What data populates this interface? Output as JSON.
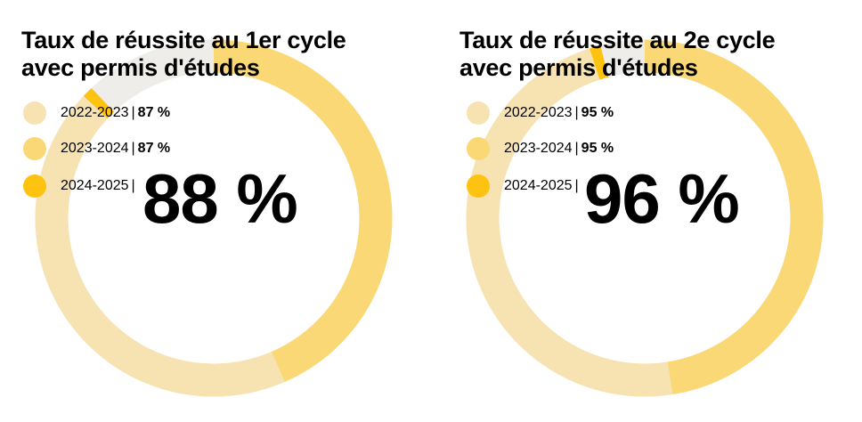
{
  "colors": {
    "track": "#eeedea",
    "year_2022_2023": "#f7e2b2",
    "year_2023_2024": "#fad875",
    "year_2024_2025": "#fec210"
  },
  "chart_data": [
    {
      "type": "donut",
      "title": "Taux de réussite au 1er cycle avec permis d'études",
      "main_value_label": "88 %",
      "categories": [
        "2022-2023",
        "2023-2024",
        "2024-2025"
      ],
      "values": [
        87,
        87,
        88
      ],
      "value_labels": [
        "87 %",
        "87 %",
        ""
      ],
      "series": [
        {
          "name": "2022-2023",
          "value": 87,
          "color": "#f7e2b2"
        },
        {
          "name": "2023-2024",
          "value": 87,
          "color": "#fad875"
        },
        {
          "name": "2024-2025",
          "value": 88,
          "color": "#fec210"
        }
      ],
      "max": 100
    },
    {
      "type": "donut",
      "title": "Taux de réussite au 2e cycle avec permis d'études",
      "main_value_label": "96 %",
      "categories": [
        "2022-2023",
        "2023-2024",
        "2024-2025"
      ],
      "values": [
        95,
        95,
        96
      ],
      "value_labels": [
        "95 %",
        "95 %",
        ""
      ],
      "series": [
        {
          "name": "2022-2023",
          "value": 95,
          "color": "#f7e2b2"
        },
        {
          "name": "2023-2024",
          "value": 95,
          "color": "#fad875"
        },
        {
          "name": "2024-2025",
          "value": 96,
          "color": "#fec210"
        }
      ],
      "max": 100
    }
  ],
  "separator": "|"
}
